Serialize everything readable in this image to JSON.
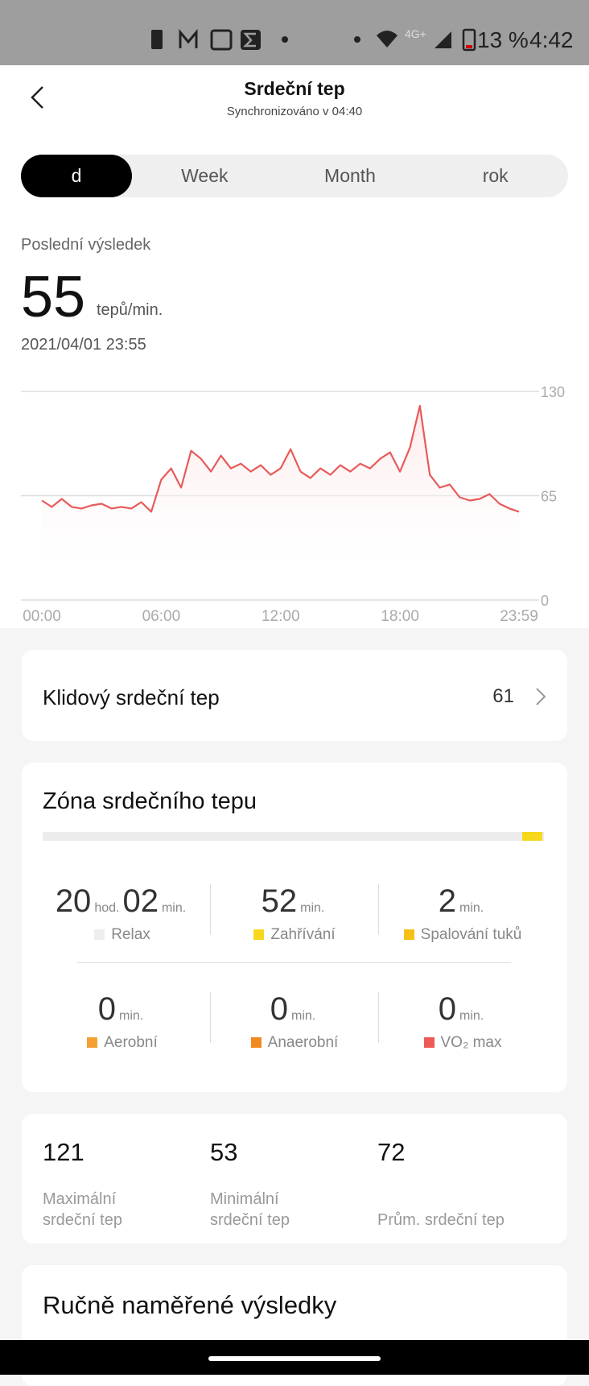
{
  "status_bar": {
    "network": "4G+",
    "battery": "13 %",
    "time": "4:42"
  },
  "header": {
    "title": "Srdeční tep",
    "subtitle": "Synchronizováno v 04:40"
  },
  "tabs": {
    "items": [
      "d",
      "Week",
      "Month",
      "rok"
    ],
    "selected": 0
  },
  "latest": {
    "label": "Poslední výsledek",
    "value": 55,
    "unit": "tepů/min.",
    "date": "2021/04/01 23:55"
  },
  "chart_data": {
    "type": "line",
    "color": "#e85a5a",
    "x": [
      0,
      0.5,
      1,
      1.5,
      2,
      2.5,
      3,
      3.5,
      4,
      4.5,
      5,
      5.5,
      6,
      6.5,
      7,
      7.5,
      8,
      8.5,
      9,
      9.5,
      10,
      10.5,
      11,
      11.5,
      12,
      12.5,
      13,
      13.5,
      14,
      14.5,
      15,
      15.5,
      16,
      16.5,
      17,
      17.5,
      18,
      18.5,
      19,
      19.5,
      20,
      20.5,
      21,
      21.5,
      22,
      22.5,
      23,
      23.5,
      23.98
    ],
    "values": [
      62,
      58,
      63,
      58,
      57,
      59,
      60,
      57,
      58,
      57,
      61,
      55,
      75,
      82,
      70,
      93,
      88,
      80,
      90,
      82,
      85,
      80,
      84,
      78,
      82,
      94,
      80,
      76,
      82,
      78,
      84,
      80,
      85,
      82,
      88,
      92,
      80,
      95,
      121,
      78,
      70,
      72,
      64,
      62,
      63,
      66,
      60,
      57,
      55
    ],
    "xlim": [
      0,
      23.98
    ],
    "ylim": [
      0,
      130
    ],
    "xticks": [
      {
        "value": 0,
        "label": "00:00"
      },
      {
        "value": 6,
        "label": "06:00"
      },
      {
        "value": 12,
        "label": "12:00"
      },
      {
        "value": 18,
        "label": "18:00"
      },
      {
        "value": 23.98,
        "label": "23:59"
      }
    ],
    "yticks": [
      0,
      65,
      130
    ],
    "grid": true
  },
  "resting": {
    "label": "Klidový srdeční tep",
    "value": 61
  },
  "zones": {
    "title": "Zóna srdečního tepu",
    "items": [
      {
        "parts": [
          {
            "num": 20,
            "unit": "hod."
          },
          {
            "num": "02",
            "unit": "min."
          }
        ],
        "label": "Relax",
        "color": "#eeeeee"
      },
      {
        "parts": [
          {
            "num": 52,
            "unit": "min."
          }
        ],
        "label": "Zahřívání",
        "color": "#f7d81c"
      },
      {
        "parts": [
          {
            "num": 2,
            "unit": "min."
          }
        ],
        "label": "Spalování tuků",
        "color": "#f5c117"
      },
      {
        "parts": [
          {
            "num": 0,
            "unit": "min."
          }
        ],
        "label": "Aerobní",
        "color": "#f5a033"
      },
      {
        "parts": [
          {
            "num": 0,
            "unit": "min."
          }
        ],
        "label": "Anaerobní",
        "color": "#f28a22"
      },
      {
        "parts": [
          {
            "num": 0,
            "unit": "min."
          }
        ],
        "label": "VO₂ max",
        "color": "#ee5a55"
      }
    ]
  },
  "stats": [
    {
      "value": 121,
      "label": "Maximální srdeční tep"
    },
    {
      "value": 53,
      "label": "Minimální srdeční tep"
    },
    {
      "value": 72,
      "label": "Prům. srdeční tep"
    }
  ],
  "manual": {
    "title": "Ručně naměřené výsledky"
  }
}
